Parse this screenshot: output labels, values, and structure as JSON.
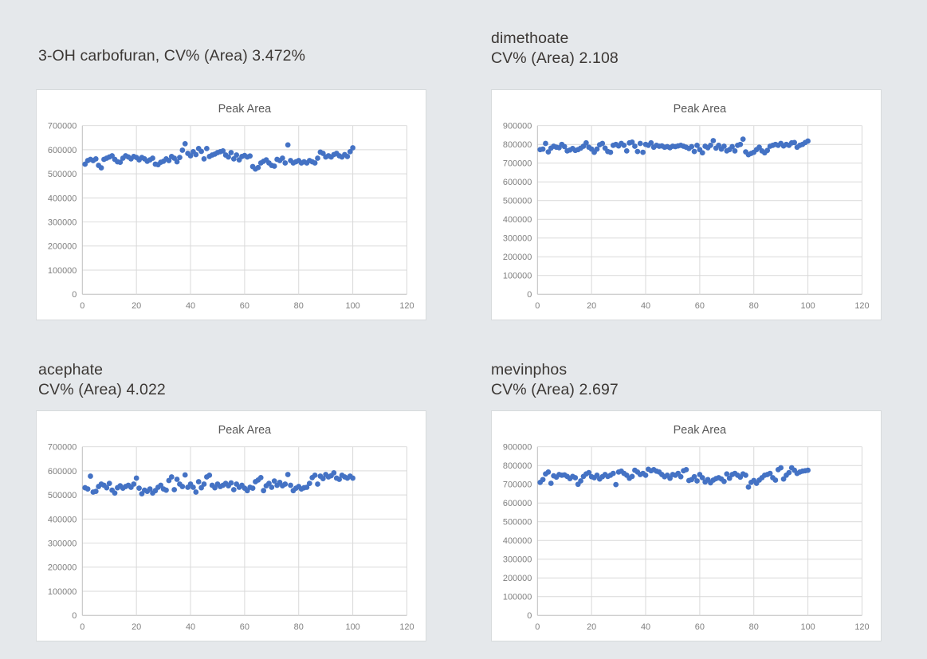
{
  "style": {
    "background": "#e5e8eb",
    "card_background": "#ffffff",
    "card_border": "#d7dadc",
    "marker_color": "#4472c4",
    "grid_color": "#d9d9d9",
    "axis_color": "#bfbfbf",
    "tick_label_color": "#7f7f7f",
    "chart_title_color": "#595959",
    "caption_color": "#3c3835"
  },
  "chart_data": [
    {
      "type": "scatter",
      "caption_lines": [
        "3-OH carbofuran, CV% (Area) 3.472%"
      ],
      "analyte": "3-OH carbofuran",
      "cv_area": "3.472%",
      "title": "Peak Area",
      "xlim": [
        0,
        120
      ],
      "xtick_step": 20,
      "ylim": [
        0,
        700000
      ],
      "ytick_step": 100000,
      "grid": true,
      "legend": false,
      "x_start": 1,
      "x_step": 1,
      "y_values": [
        540000,
        555000,
        560000,
        555000,
        562000,
        535000,
        525000,
        560000,
        565000,
        570000,
        575000,
        560000,
        550000,
        548000,
        565000,
        575000,
        570000,
        562000,
        572000,
        568000,
        558000,
        568000,
        562000,
        552000,
        558000,
        565000,
        540000,
        538000,
        548000,
        552000,
        562000,
        555000,
        572000,
        565000,
        550000,
        568000,
        598000,
        625000,
        585000,
        575000,
        592000,
        580000,
        605000,
        593000,
        562000,
        605000,
        572000,
        578000,
        582000,
        588000,
        592000,
        595000,
        578000,
        570000,
        588000,
        562000,
        578000,
        558000,
        572000,
        576000,
        570000,
        574000,
        530000,
        520000,
        526000,
        545000,
        552000,
        558000,
        545000,
        535000,
        532000,
        560000,
        555000,
        565000,
        545000,
        620000,
        555000,
        545000,
        550000,
        555000,
        545000,
        550000,
        545000,
        555000,
        550000,
        545000,
        565000,
        590000,
        585000,
        570000,
        575000,
        570000,
        580000,
        585000,
        575000,
        570000,
        580000,
        572000,
        592000,
        608000
      ]
    },
    {
      "type": "scatter",
      "caption_lines": [
        "dimethoate",
        "CV% (Area) 2.108"
      ],
      "analyte": "dimethoate",
      "cv_area": "2.108",
      "title": "Peak Area",
      "xlim": [
        0,
        120
      ],
      "xtick_step": 20,
      "ylim": [
        0,
        900000
      ],
      "ytick_step": 100000,
      "grid": true,
      "legend": false,
      "x_start": 1,
      "x_step": 1,
      "y_values": [
        772000,
        775000,
        805000,
        760000,
        780000,
        790000,
        785000,
        782000,
        800000,
        788000,
        765000,
        770000,
        778000,
        768000,
        772000,
        780000,
        790000,
        808000,
        785000,
        775000,
        758000,
        775000,
        798000,
        805000,
        780000,
        762000,
        758000,
        795000,
        800000,
        792000,
        805000,
        795000,
        765000,
        808000,
        812000,
        790000,
        762000,
        805000,
        758000,
        800000,
        795000,
        808000,
        785000,
        795000,
        790000,
        792000,
        785000,
        788000,
        782000,
        790000,
        788000,
        792000,
        795000,
        790000,
        785000,
        778000,
        788000,
        762000,
        795000,
        772000,
        755000,
        790000,
        782000,
        795000,
        820000,
        780000,
        795000,
        775000,
        790000,
        765000,
        772000,
        788000,
        765000,
        795000,
        800000,
        828000,
        760000,
        745000,
        752000,
        758000,
        772000,
        785000,
        765000,
        755000,
        768000,
        790000,
        795000,
        800000,
        795000,
        805000,
        792000,
        800000,
        795000,
        808000,
        810000,
        785000,
        795000,
        800000,
        810000,
        818000
      ]
    },
    {
      "type": "scatter",
      "caption_lines": [
        "acephate",
        "CV% (Area) 4.022"
      ],
      "analyte": "acephate",
      "cv_area": "4.022",
      "title": "Peak Area",
      "xlim": [
        0,
        120
      ],
      "xtick_step": 20,
      "ylim": [
        0,
        700000
      ],
      "ytick_step": 100000,
      "grid": true,
      "legend": false,
      "x_start": 1,
      "x_step": 1,
      "y_values": [
        530000,
        525000,
        578000,
        512000,
        515000,
        535000,
        545000,
        540000,
        530000,
        548000,
        520000,
        508000,
        530000,
        538000,
        528000,
        535000,
        540000,
        532000,
        545000,
        570000,
        528000,
        505000,
        520000,
        515000,
        525000,
        508000,
        518000,
        532000,
        540000,
        525000,
        520000,
        560000,
        575000,
        522000,
        565000,
        545000,
        535000,
        583000,
        532000,
        545000,
        532000,
        512000,
        555000,
        530000,
        545000,
        575000,
        582000,
        540000,
        530000,
        545000,
        535000,
        540000,
        548000,
        538000,
        550000,
        522000,
        545000,
        532000,
        540000,
        528000,
        518000,
        532000,
        528000,
        555000,
        562000,
        572000,
        518000,
        538000,
        548000,
        532000,
        558000,
        540000,
        552000,
        538000,
        545000,
        585000,
        540000,
        518000,
        528000,
        535000,
        525000,
        530000,
        532000,
        548000,
        572000,
        582000,
        545000,
        578000,
        568000,
        585000,
        575000,
        580000,
        592000,
        570000,
        565000,
        582000,
        575000,
        570000,
        578000,
        570000
      ]
    },
    {
      "type": "scatter",
      "caption_lines": [
        "mevinphos",
        "CV% (Area) 2.697"
      ],
      "analyte": "mevinphos",
      "cv_area": "2.697",
      "title": "Peak Area",
      "xlim": [
        0,
        120
      ],
      "xtick_step": 20,
      "ylim": [
        0,
        900000
      ],
      "ytick_step": 100000,
      "grid": true,
      "legend": false,
      "x_start": 1,
      "x_step": 1,
      "y_values": [
        710000,
        725000,
        755000,
        765000,
        705000,
        745000,
        738000,
        752000,
        748000,
        750000,
        742000,
        730000,
        742000,
        735000,
        700000,
        718000,
        742000,
        755000,
        762000,
        740000,
        735000,
        748000,
        728000,
        740000,
        752000,
        742000,
        748000,
        758000,
        698000,
        765000,
        770000,
        758000,
        748000,
        732000,
        742000,
        775000,
        765000,
        752000,
        758000,
        748000,
        780000,
        772000,
        778000,
        770000,
        765000,
        752000,
        740000,
        748000,
        732000,
        752000,
        748000,
        758000,
        740000,
        772000,
        778000,
        720000,
        725000,
        740000,
        718000,
        752000,
        735000,
        712000,
        725000,
        708000,
        722000,
        730000,
        735000,
        728000,
        715000,
        755000,
        732000,
        752000,
        758000,
        748000,
        738000,
        755000,
        748000,
        685000,
        710000,
        720000,
        705000,
        722000,
        735000,
        748000,
        752000,
        758000,
        735000,
        722000,
        778000,
        788000,
        728000,
        748000,
        762000,
        788000,
        775000,
        758000,
        765000,
        770000,
        772000,
        775000
      ]
    }
  ]
}
